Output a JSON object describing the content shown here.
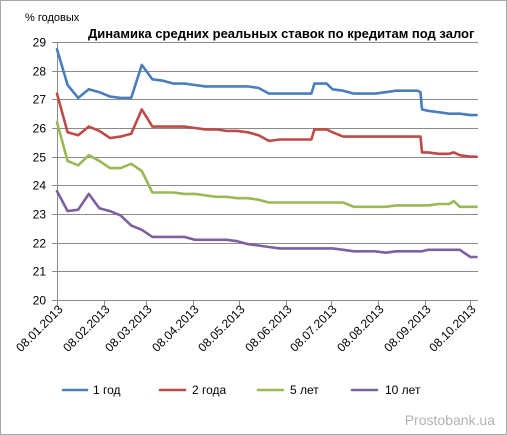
{
  "chart_data": {
    "type": "line",
    "title": "Динамика средних реальных ставок по кредитам под залог",
    "ylabel": "% годовых",
    "ylim": [
      20,
      29
    ],
    "y_ticks": [
      20,
      21,
      22,
      23,
      24,
      25,
      26,
      27,
      28,
      29
    ],
    "xlim": [
      "08.01.2013",
      "13.10.2013"
    ],
    "x_ticks": [
      "08.01.2013",
      "08.02.2013",
      "08.03.2013",
      "08.04.2013",
      "08.05.2013",
      "08.06.2013",
      "08.07.2013",
      "08.08.2013",
      "08.09.2013",
      "08.10.2013"
    ],
    "grid": true,
    "legend": "bottom",
    "x": [
      "08.01.2013",
      "15.01.2013",
      "22.01.2013",
      "29.01.2013",
      "05.02.2013",
      "12.02.2013",
      "19.02.2013",
      "26.02.2013",
      "05.03.2013",
      "12.03.2013",
      "19.03.2013",
      "26.03.2013",
      "02.04.2013",
      "09.04.2013",
      "16.04.2013",
      "23.04.2013",
      "30.04.2013",
      "07.05.2013",
      "14.05.2013",
      "21.05.2013",
      "28.05.2013",
      "04.06.2013",
      "11.06.2013",
      "18.06.2013",
      "25.06.2013",
      "27.06.2013",
      "02.07.2013",
      "05.07.2013",
      "09.07.2013",
      "16.07.2013",
      "23.07.2013",
      "30.07.2013",
      "06.08.2013",
      "13.08.2013",
      "20.08.2013",
      "27.08.2013",
      "03.09.2013",
      "05.09.2013",
      "06.09.2013",
      "10.09.2013",
      "17.09.2013",
      "24.09.2013",
      "27.09.2013",
      "01.10.2013",
      "08.10.2013",
      "12.10.2013"
    ],
    "series": [
      {
        "name": "1 год",
        "color": "#4a7ebb",
        "values": [
          28.75,
          27.5,
          27.05,
          27.35,
          27.25,
          27.1,
          27.05,
          27.05,
          28.2,
          27.7,
          27.65,
          27.55,
          27.55,
          27.5,
          27.45,
          27.45,
          27.45,
          27.45,
          27.45,
          27.4,
          27.2,
          27.2,
          27.2,
          27.2,
          27.2,
          27.55,
          27.55,
          27.55,
          27.35,
          27.3,
          27.2,
          27.2,
          27.2,
          27.25,
          27.3,
          27.3,
          27.3,
          27.25,
          26.65,
          26.6,
          26.55,
          26.5,
          26.5,
          26.5,
          26.45,
          26.45
        ]
      },
      {
        "name": "2 года",
        "color": "#be4b48",
        "values": [
          27.2,
          25.85,
          25.75,
          26.05,
          25.9,
          25.65,
          25.7,
          25.8,
          26.65,
          26.05,
          26.05,
          26.05,
          26.05,
          26.0,
          25.95,
          25.95,
          25.9,
          25.9,
          25.85,
          25.75,
          25.55,
          25.6,
          25.6,
          25.6,
          25.6,
          25.95,
          25.95,
          25.95,
          25.85,
          25.7,
          25.7,
          25.7,
          25.7,
          25.7,
          25.7,
          25.7,
          25.7,
          25.7,
          25.15,
          25.15,
          25.1,
          25.1,
          25.15,
          25.05,
          25.0,
          25.0
        ]
      },
      {
        "name": "5 лет",
        "color": "#98b954",
        "values": [
          26.2,
          24.85,
          24.7,
          25.05,
          24.85,
          24.6,
          24.6,
          24.75,
          24.5,
          23.75,
          23.75,
          23.75,
          23.7,
          23.7,
          23.65,
          23.6,
          23.6,
          23.55,
          23.55,
          23.5,
          23.4,
          23.4,
          23.4,
          23.4,
          23.4,
          23.4,
          23.4,
          23.4,
          23.4,
          23.4,
          23.25,
          23.25,
          23.25,
          23.25,
          23.3,
          23.3,
          23.3,
          23.3,
          23.3,
          23.3,
          23.35,
          23.35,
          23.45,
          23.25,
          23.25,
          23.25
        ]
      },
      {
        "name": "10 лет",
        "color": "#7d60a0",
        "values": [
          23.8,
          23.1,
          23.15,
          23.7,
          23.2,
          23.1,
          22.95,
          22.6,
          22.45,
          22.2,
          22.2,
          22.2,
          22.2,
          22.1,
          22.1,
          22.1,
          22.1,
          22.05,
          21.95,
          21.9,
          21.85,
          21.8,
          21.8,
          21.8,
          21.8,
          21.8,
          21.8,
          21.8,
          21.8,
          21.75,
          21.7,
          21.7,
          21.7,
          21.65,
          21.7,
          21.7,
          21.7,
          21.7,
          21.7,
          21.75,
          21.75,
          21.75,
          21.75,
          21.75,
          21.5,
          21.5
        ]
      }
    ]
  },
  "watermark": "Prostobank.ua"
}
